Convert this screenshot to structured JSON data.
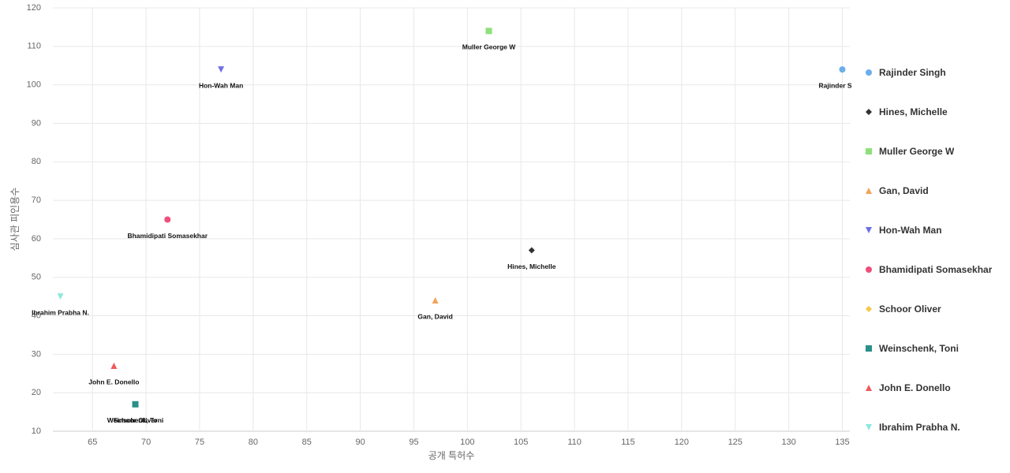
{
  "chart_data": {
    "type": "scatter",
    "x_label": "공개 특허수",
    "y_label": "심사관 피인용수",
    "xlim": [
      61.3,
      135.7
    ],
    "ylim": [
      10,
      120
    ],
    "xticks": [
      65,
      70,
      75,
      80,
      85,
      90,
      95,
      100,
      105,
      110,
      115,
      120,
      125,
      130,
      135
    ],
    "yticks": [
      10,
      20,
      30,
      40,
      50,
      60,
      70,
      80,
      90,
      100,
      110,
      120
    ],
    "grid": true,
    "legend": "right",
    "series": [
      {
        "name": "Rajinder Singh",
        "color": "#6aaeea",
        "marker": "circle",
        "x": [
          135
        ],
        "values": [
          104
        ]
      },
      {
        "name": "Hines, Michelle",
        "color": "#333333",
        "marker": "diamond",
        "x": [
          106
        ],
        "values": [
          57
        ]
      },
      {
        "name": "Muller George W",
        "color": "#8de07a",
        "marker": "square",
        "x": [
          102
        ],
        "values": [
          114
        ]
      },
      {
        "name": "Gan, David",
        "color": "#f4a259",
        "marker": "triangle-up",
        "x": [
          97
        ],
        "values": [
          44
        ]
      },
      {
        "name": "Hon-Wah Man",
        "color": "#6f6fe8",
        "marker": "triangle-down",
        "x": [
          77
        ],
        "values": [
          104
        ]
      },
      {
        "name": "Bhamidipati Somasekhar",
        "color": "#ee4f7a",
        "marker": "circle",
        "x": [
          72
        ],
        "values": [
          65
        ]
      },
      {
        "name": "Schoor Oliver",
        "color": "#f5c84c",
        "marker": "diamond",
        "x": [
          69
        ],
        "values": [
          17
        ]
      },
      {
        "name": "Weinschenk, Toni",
        "color": "#2a9088",
        "marker": "square",
        "x": [
          69
        ],
        "values": [
          17
        ]
      },
      {
        "name": "John E. Donello",
        "color": "#ef5a5a",
        "marker": "triangle-up",
        "x": [
          67
        ],
        "values": [
          27
        ]
      },
      {
        "name": "Ibrahim Prabha N.",
        "color": "#8ee8de",
        "marker": "triangle-down",
        "x": [
          62
        ],
        "values": [
          45
        ]
      }
    ]
  }
}
